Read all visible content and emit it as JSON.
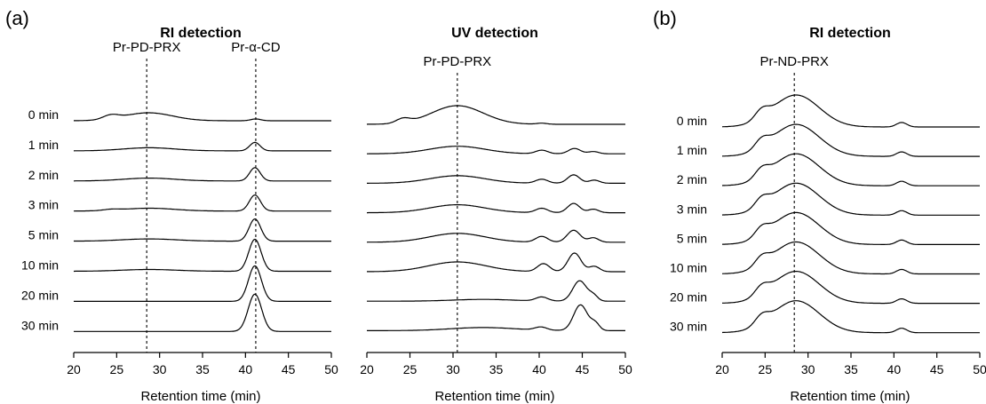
{
  "panel_letters": {
    "a": "(a)",
    "b": "(b)"
  },
  "chart_data": [
    {
      "type": "line",
      "title": "RI detection",
      "xlabel": "Retention time (min)",
      "ylabel": "",
      "xlim": [
        20,
        50
      ],
      "xticks": [
        20,
        25,
        30,
        35,
        40,
        45,
        50
      ],
      "reference_lines": [
        {
          "label": "Pr-PD-PRX",
          "x": 28.5
        },
        {
          "label": "Pr-α-CD",
          "x": 41.2
        }
      ],
      "series_labels": [
        "0 min",
        "1 min",
        "2 min",
        "3 min",
        "5 min",
        "10 min",
        "20 min",
        "30 min"
      ],
      "peaks": [
        [
          {
            "c": 24.3,
            "w": 0.9,
            "h": 0.45
          },
          {
            "c": 28.7,
            "w": 2.8,
            "h": 0.9
          },
          {
            "c": 41.2,
            "w": 0.6,
            "h": 0.2
          }
        ],
        [
          {
            "c": 28.8,
            "w": 3.0,
            "h": 0.35
          },
          {
            "c": 41.1,
            "w": 0.6,
            "h": 0.95
          }
        ],
        [
          {
            "c": 28.8,
            "w": 3.0,
            "h": 0.32
          },
          {
            "c": 41.1,
            "w": 0.62,
            "h": 1.5
          }
        ],
        [
          {
            "c": 24.4,
            "w": 0.9,
            "h": 0.12
          },
          {
            "c": 28.8,
            "w": 3.0,
            "h": 0.32
          },
          {
            "c": 41.1,
            "w": 0.65,
            "h": 1.8
          }
        ],
        [
          {
            "c": 28.8,
            "w": 3.2,
            "h": 0.25
          },
          {
            "c": 41.1,
            "w": 0.68,
            "h": 2.5
          }
        ],
        [
          {
            "c": 28.8,
            "w": 3.2,
            "h": 0.2
          },
          {
            "c": 41.1,
            "w": 0.72,
            "h": 3.6
          }
        ],
        [
          {
            "c": 41.1,
            "w": 0.75,
            "h": 4.0
          }
        ],
        [
          {
            "c": 41.1,
            "w": 0.78,
            "h": 4.2
          }
        ]
      ]
    },
    {
      "type": "line",
      "title": "UV detection",
      "xlabel": "Retention time (min)",
      "ylabel": "",
      "xlim": [
        20,
        50
      ],
      "xticks": [
        20,
        25,
        30,
        35,
        40,
        45,
        50
      ],
      "reference_lines": [
        {
          "label": "Pr-PD-PRX",
          "x": 30.5
        }
      ],
      "series_labels": [],
      "peaks": [
        [
          {
            "c": 24.2,
            "w": 0.8,
            "h": 0.5
          },
          {
            "c": 30.5,
            "w": 3.0,
            "h": 2.1
          },
          {
            "c": 40.3,
            "w": 0.6,
            "h": 0.12
          }
        ],
        [
          {
            "c": 30.5,
            "w": 3.2,
            "h": 0.85
          },
          {
            "c": 40.3,
            "w": 0.7,
            "h": 0.4
          },
          {
            "c": 44.1,
            "w": 0.7,
            "h": 0.6
          },
          {
            "c": 46.3,
            "w": 0.6,
            "h": 0.25
          }
        ],
        [
          {
            "c": 30.5,
            "w": 3.2,
            "h": 0.85
          },
          {
            "c": 40.3,
            "w": 0.7,
            "h": 0.45
          },
          {
            "c": 44.0,
            "w": 0.7,
            "h": 0.95
          },
          {
            "c": 46.4,
            "w": 0.6,
            "h": 0.35
          }
        ],
        [
          {
            "c": 30.5,
            "w": 3.2,
            "h": 0.9
          },
          {
            "c": 40.3,
            "w": 0.7,
            "h": 0.5
          },
          {
            "c": 44.0,
            "w": 0.7,
            "h": 1.05
          },
          {
            "c": 46.3,
            "w": 0.6,
            "h": 0.4
          }
        ],
        [
          {
            "c": 30.5,
            "w": 3.2,
            "h": 1.0
          },
          {
            "c": 40.3,
            "w": 0.7,
            "h": 0.65
          },
          {
            "c": 44.0,
            "w": 0.75,
            "h": 1.35
          },
          {
            "c": 46.3,
            "w": 0.6,
            "h": 0.5
          }
        ],
        [
          {
            "c": 30.5,
            "w": 3.3,
            "h": 1.1
          },
          {
            "c": 40.5,
            "w": 0.7,
            "h": 0.9
          },
          {
            "c": 44.1,
            "w": 0.75,
            "h": 2.1
          },
          {
            "c": 46.4,
            "w": 0.6,
            "h": 0.6
          }
        ],
        [
          {
            "c": 33.5,
            "w": 3.5,
            "h": 0.2
          },
          {
            "c": 40.3,
            "w": 0.7,
            "h": 0.45
          },
          {
            "c": 44.7,
            "w": 0.8,
            "h": 2.3
          },
          {
            "c": 46.3,
            "w": 0.5,
            "h": 0.6
          }
        ],
        [
          {
            "c": 33.5,
            "w": 3.8,
            "h": 0.35
          },
          {
            "c": 40.2,
            "w": 0.7,
            "h": 0.35
          },
          {
            "c": 44.8,
            "w": 0.8,
            "h": 2.9
          },
          {
            "c": 46.5,
            "w": 0.5,
            "h": 0.8
          }
        ]
      ]
    },
    {
      "type": "line",
      "title": "RI detection",
      "xlabel": "Retention time (min)",
      "ylabel": "",
      "xlim": [
        20,
        50
      ],
      "xticks": [
        20,
        25,
        30,
        35,
        40,
        45,
        50
      ],
      "reference_lines": [
        {
          "label": "Pr-ND-PRX",
          "x": 28.4
        }
      ],
      "series_labels": [
        "0 min",
        "1 min",
        "2 min",
        "3 min",
        "5 min",
        "10 min",
        "20 min",
        "30 min"
      ],
      "peaks": [
        [
          {
            "c": 24.6,
            "w": 0.8,
            "h": 0.55
          },
          {
            "c": 28.6,
            "w": 2.7,
            "h": 2.0
          },
          {
            "c": 40.9,
            "w": 0.6,
            "h": 0.28
          }
        ],
        [
          {
            "c": 24.6,
            "w": 0.8,
            "h": 0.55
          },
          {
            "c": 28.6,
            "w": 2.7,
            "h": 2.0
          },
          {
            "c": 40.9,
            "w": 0.6,
            "h": 0.28
          }
        ],
        [
          {
            "c": 24.6,
            "w": 0.8,
            "h": 0.55
          },
          {
            "c": 28.6,
            "w": 2.7,
            "h": 2.0
          },
          {
            "c": 40.9,
            "w": 0.6,
            "h": 0.28
          }
        ],
        [
          {
            "c": 24.6,
            "w": 0.8,
            "h": 0.55
          },
          {
            "c": 28.6,
            "w": 2.7,
            "h": 2.0
          },
          {
            "c": 40.9,
            "w": 0.6,
            "h": 0.28
          }
        ],
        [
          {
            "c": 24.6,
            "w": 0.8,
            "h": 0.55
          },
          {
            "c": 28.6,
            "w": 2.7,
            "h": 2.0
          },
          {
            "c": 40.9,
            "w": 0.6,
            "h": 0.28
          }
        ],
        [
          {
            "c": 24.6,
            "w": 0.8,
            "h": 0.55
          },
          {
            "c": 28.6,
            "w": 2.7,
            "h": 2.0
          },
          {
            "c": 40.9,
            "w": 0.6,
            "h": 0.28
          }
        ],
        [
          {
            "c": 24.6,
            "w": 0.8,
            "h": 0.55
          },
          {
            "c": 28.6,
            "w": 2.7,
            "h": 2.0
          },
          {
            "c": 40.9,
            "w": 0.6,
            "h": 0.28
          }
        ],
        [
          {
            "c": 24.6,
            "w": 0.8,
            "h": 0.55
          },
          {
            "c": 28.6,
            "w": 2.7,
            "h": 2.0
          },
          {
            "c": 40.9,
            "w": 0.6,
            "h": 0.28
          }
        ]
      ]
    }
  ]
}
